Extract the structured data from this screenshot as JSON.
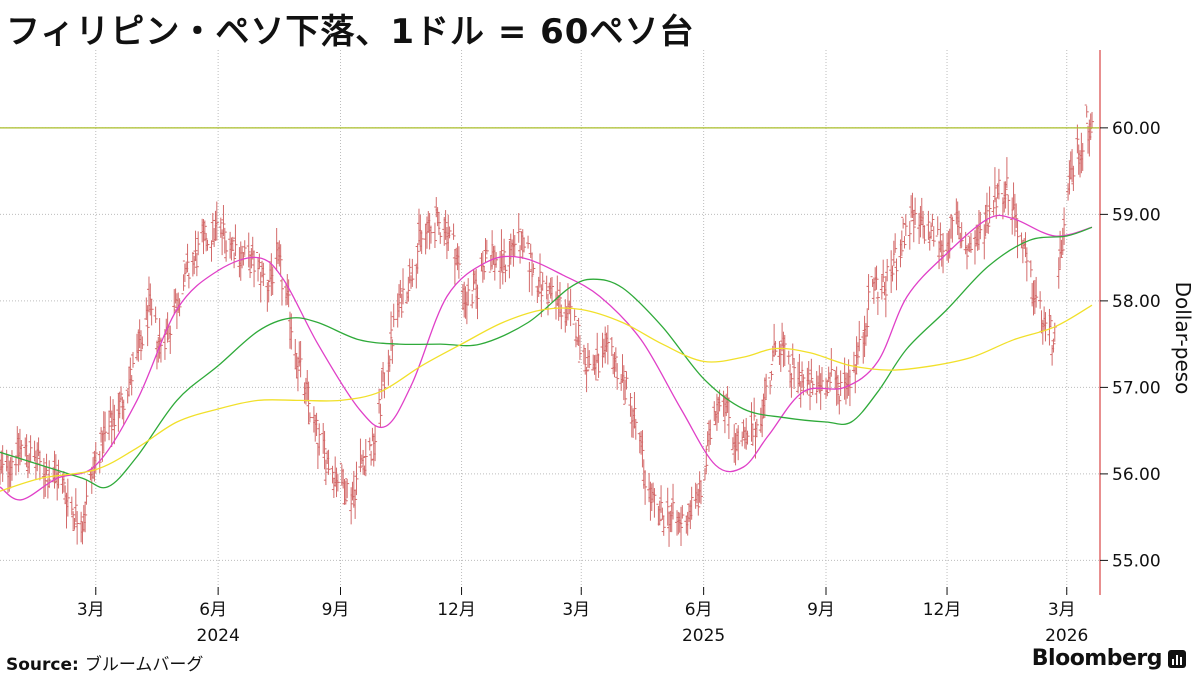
{
  "title": "フィリピン・ペソ下落、1ドル = 60ペソ台",
  "source_label": "Source:",
  "source_value": "ブルームバーグ",
  "brand": "Bloomberg",
  "chart_data": {
    "type": "bar",
    "subtype": "ohlc",
    "y_axis_label": "Dollar-peso",
    "y_axis_side": "right",
    "ylim": [
      54.6,
      60.9
    ],
    "yticks": [
      "55.00",
      "56.00",
      "57.00",
      "58.00",
      "59.00",
      "60.00"
    ],
    "reference_line": {
      "value": 60.0,
      "color": "#aabe2a"
    },
    "xlim": [
      "2023-12-20",
      "2026-03-26"
    ],
    "x_month_ticks": [
      {
        "date": "2024-03-01",
        "label": "3月"
      },
      {
        "date": "2024-06-01",
        "label": "6月"
      },
      {
        "date": "2024-09-01",
        "label": "9月"
      },
      {
        "date": "2024-12-01",
        "label": "12月"
      },
      {
        "date": "2025-03-01",
        "label": "3月"
      },
      {
        "date": "2025-06-01",
        "label": "6月"
      },
      {
        "date": "2025-09-01",
        "label": "9月"
      },
      {
        "date": "2025-12-01",
        "label": "12月"
      },
      {
        "date": "2026-03-01",
        "label": "3月"
      }
    ],
    "x_year_labels": [
      {
        "date": "2024-06-01",
        "label": "2024"
      },
      {
        "date": "2025-06-01",
        "label": "2025"
      },
      {
        "date": "2026-03-01",
        "label": "2026"
      }
    ],
    "grid": true,
    "colors": {
      "bars": "#d36a6a",
      "ma_magenta": "#e040c8",
      "ma_green": "#2faa3a",
      "ma_yellow": "#f1e02a",
      "axis_right": "#e06a6a",
      "grid": "#bdbdbd"
    },
    "price_path": [
      [
        "2023-12-20",
        56.0
      ],
      [
        "2024-01-05",
        56.3
      ],
      [
        "2024-01-15",
        56.15
      ],
      [
        "2024-01-25",
        56.0
      ],
      [
        "2024-02-03",
        55.95
      ],
      [
        "2024-02-12",
        55.6
      ],
      [
        "2024-02-20",
        55.45
      ],
      [
        "2024-03-01",
        56.2
      ],
      [
        "2024-03-12",
        56.55
      ],
      [
        "2024-03-22",
        56.9
      ],
      [
        "2024-04-01",
        57.3
      ],
      [
        "2024-04-10",
        57.9
      ],
      [
        "2024-04-18",
        57.5
      ],
      [
        "2024-04-25",
        57.7
      ],
      [
        "2024-05-03",
        58.1
      ],
      [
        "2024-05-12",
        58.4
      ],
      [
        "2024-05-22",
        58.7
      ],
      [
        "2024-06-01",
        58.85
      ],
      [
        "2024-06-10",
        58.7
      ],
      [
        "2024-06-20",
        58.5
      ],
      [
        "2024-06-30",
        58.4
      ],
      [
        "2024-07-08",
        58.2
      ],
      [
        "2024-07-16",
        58.45
      ],
      [
        "2024-07-24",
        57.9
      ],
      [
        "2024-07-31",
        57.3
      ],
      [
        "2024-08-08",
        56.8
      ],
      [
        "2024-08-16",
        56.35
      ],
      [
        "2024-08-24",
        56.1
      ],
      [
        "2024-09-02",
        55.9
      ],
      [
        "2024-09-10",
        55.75
      ],
      [
        "2024-09-18",
        56.2
      ],
      [
        "2024-09-26",
        56.3
      ],
      [
        "2024-10-05",
        57.2
      ],
      [
        "2024-10-14",
        57.9
      ],
      [
        "2024-10-23",
        58.3
      ],
      [
        "2024-10-31",
        58.7
      ],
      [
        "2024-11-10",
        58.85
      ],
      [
        "2024-11-18",
        58.9
      ],
      [
        "2024-11-26",
        58.6
      ],
      [
        "2024-12-04",
        58.0
      ],
      [
        "2024-12-12",
        58.1
      ],
      [
        "2024-12-20",
        58.6
      ],
      [
        "2025-01-01",
        58.4
      ],
      [
        "2025-01-10",
        58.7
      ],
      [
        "2025-01-20",
        58.5
      ],
      [
        "2025-01-30",
        58.15
      ],
      [
        "2025-02-08",
        58.05
      ],
      [
        "2025-02-16",
        57.9
      ],
      [
        "2025-02-25",
        57.7
      ],
      [
        "2025-03-05",
        57.3
      ],
      [
        "2025-03-14",
        57.25
      ],
      [
        "2025-03-24",
        57.4
      ],
      [
        "2025-04-02",
        57.05
      ],
      [
        "2025-04-11",
        56.6
      ],
      [
        "2025-04-20",
        55.8
      ],
      [
        "2025-04-28",
        55.5
      ],
      [
        "2025-05-06",
        55.55
      ],
      [
        "2025-05-14",
        55.4
      ],
      [
        "2025-05-22",
        55.6
      ],
      [
        "2025-05-31",
        55.8
      ],
      [
        "2025-06-08",
        56.7
      ],
      [
        "2025-06-15",
        57.0
      ],
      [
        "2025-06-24",
        56.4
      ],
      [
        "2025-07-03",
        56.35
      ],
      [
        "2025-07-12",
        56.6
      ],
      [
        "2025-07-20",
        57.05
      ],
      [
        "2025-07-27",
        57.6
      ],
      [
        "2025-08-04",
        57.2
      ],
      [
        "2025-08-13",
        57.1
      ],
      [
        "2025-08-22",
        56.95
      ],
      [
        "2025-09-01",
        57.1
      ],
      [
        "2025-09-10",
        57.0
      ],
      [
        "2025-09-20",
        57.15
      ],
      [
        "2025-09-28",
        57.5
      ],
      [
        "2025-10-06",
        58.2
      ],
      [
        "2025-10-15",
        58.15
      ],
      [
        "2025-10-24",
        58.5
      ],
      [
        "2025-11-02",
        58.9
      ],
      [
        "2025-11-11",
        58.85
      ],
      [
        "2025-11-20",
        58.8
      ],
      [
        "2025-11-29",
        58.6
      ],
      [
        "2025-12-07",
        58.9
      ],
      [
        "2025-12-16",
        58.6
      ],
      [
        "2025-12-25",
        58.7
      ],
      [
        "2026-01-05",
        59.2
      ],
      [
        "2026-01-14",
        59.35
      ],
      [
        "2026-01-22",
        58.95
      ],
      [
        "2026-01-31",
        58.3
      ],
      [
        "2026-02-08",
        57.9
      ],
      [
        "2026-02-15",
        57.6
      ],
      [
        "2026-02-20",
        57.6
      ],
      [
        "2026-02-25",
        58.6
      ],
      [
        "2026-03-02",
        59.2
      ],
      [
        "2026-03-08",
        59.7
      ],
      [
        "2026-03-13",
        59.8
      ],
      [
        "2026-03-17",
        60.1
      ],
      [
        "2026-03-20",
        60.0
      ]
    ],
    "moving_averages": [
      {
        "color": "#e040c8",
        "points": [
          [
            "2023-12-20",
            55.85
          ],
          [
            "2024-01-05",
            55.7
          ],
          [
            "2024-02-01",
            55.95
          ],
          [
            "2024-03-01",
            56.1
          ],
          [
            "2024-04-01",
            56.85
          ],
          [
            "2024-05-01",
            57.9
          ],
          [
            "2024-06-01",
            58.35
          ],
          [
            "2024-07-01",
            58.5
          ],
          [
            "2024-07-20",
            58.25
          ],
          [
            "2024-08-15",
            57.5
          ],
          [
            "2024-09-15",
            56.75
          ],
          [
            "2024-10-05",
            56.55
          ],
          [
            "2024-10-25",
            57.05
          ],
          [
            "2024-11-20",
            58.05
          ],
          [
            "2024-12-20",
            58.45
          ],
          [
            "2025-01-15",
            58.5
          ],
          [
            "2025-02-15",
            58.3
          ],
          [
            "2025-03-15",
            58.05
          ],
          [
            "2025-04-15",
            57.55
          ],
          [
            "2025-05-15",
            56.75
          ],
          [
            "2025-06-10",
            56.1
          ],
          [
            "2025-07-01",
            56.08
          ],
          [
            "2025-07-20",
            56.45
          ],
          [
            "2025-08-15",
            56.95
          ],
          [
            "2025-09-15",
            57.0
          ],
          [
            "2025-10-10",
            57.3
          ],
          [
            "2025-11-01",
            58.05
          ],
          [
            "2025-12-01",
            58.55
          ],
          [
            "2026-01-01",
            58.95
          ],
          [
            "2026-01-20",
            58.95
          ],
          [
            "2026-02-20",
            58.75
          ],
          [
            "2026-03-20",
            58.85
          ]
        ]
      },
      {
        "color": "#2faa3a",
        "points": [
          [
            "2023-12-20",
            56.25
          ],
          [
            "2024-01-20",
            56.1
          ],
          [
            "2024-02-20",
            55.95
          ],
          [
            "2024-03-10",
            55.85
          ],
          [
            "2024-04-01",
            56.2
          ],
          [
            "2024-05-01",
            56.85
          ],
          [
            "2024-06-01",
            57.25
          ],
          [
            "2024-07-01",
            57.65
          ],
          [
            "2024-07-25",
            57.8
          ],
          [
            "2024-08-15",
            57.75
          ],
          [
            "2024-09-15",
            57.55
          ],
          [
            "2024-10-15",
            57.5
          ],
          [
            "2024-11-15",
            57.5
          ],
          [
            "2024-12-15",
            57.5
          ],
          [
            "2025-01-20",
            57.75
          ],
          [
            "2025-02-20",
            58.15
          ],
          [
            "2025-03-10",
            58.25
          ],
          [
            "2025-04-01",
            58.15
          ],
          [
            "2025-05-01",
            57.7
          ],
          [
            "2025-06-01",
            57.1
          ],
          [
            "2025-07-01",
            56.75
          ],
          [
            "2025-08-01",
            56.65
          ],
          [
            "2025-09-01",
            56.6
          ],
          [
            "2025-09-20",
            56.6
          ],
          [
            "2025-10-10",
            56.95
          ],
          [
            "2025-11-01",
            57.45
          ],
          [
            "2025-12-01",
            57.9
          ],
          [
            "2026-01-01",
            58.4
          ],
          [
            "2026-02-01",
            58.7
          ],
          [
            "2026-03-01",
            58.75
          ],
          [
            "2026-03-20",
            58.85
          ]
        ]
      },
      {
        "color": "#f1e02a",
        "points": [
          [
            "2023-12-20",
            55.8
          ],
          [
            "2024-01-20",
            55.95
          ],
          [
            "2024-03-01",
            56.05
          ],
          [
            "2024-04-01",
            56.3
          ],
          [
            "2024-05-01",
            56.6
          ],
          [
            "2024-06-01",
            56.75
          ],
          [
            "2024-07-01",
            56.85
          ],
          [
            "2024-08-01",
            56.85
          ],
          [
            "2024-09-01",
            56.85
          ],
          [
            "2024-10-01",
            56.95
          ],
          [
            "2024-11-01",
            57.25
          ],
          [
            "2024-12-01",
            57.5
          ],
          [
            "2025-01-01",
            57.75
          ],
          [
            "2025-02-01",
            57.9
          ],
          [
            "2025-03-01",
            57.9
          ],
          [
            "2025-04-01",
            57.75
          ],
          [
            "2025-05-01",
            57.5
          ],
          [
            "2025-06-01",
            57.3
          ],
          [
            "2025-07-01",
            57.35
          ],
          [
            "2025-07-25",
            57.45
          ],
          [
            "2025-08-20",
            57.4
          ],
          [
            "2025-09-20",
            57.25
          ],
          [
            "2025-10-20",
            57.2
          ],
          [
            "2025-11-20",
            57.25
          ],
          [
            "2025-12-20",
            57.35
          ],
          [
            "2026-01-20",
            57.55
          ],
          [
            "2026-02-20",
            57.7
          ],
          [
            "2026-03-20",
            57.95
          ]
        ]
      }
    ]
  }
}
